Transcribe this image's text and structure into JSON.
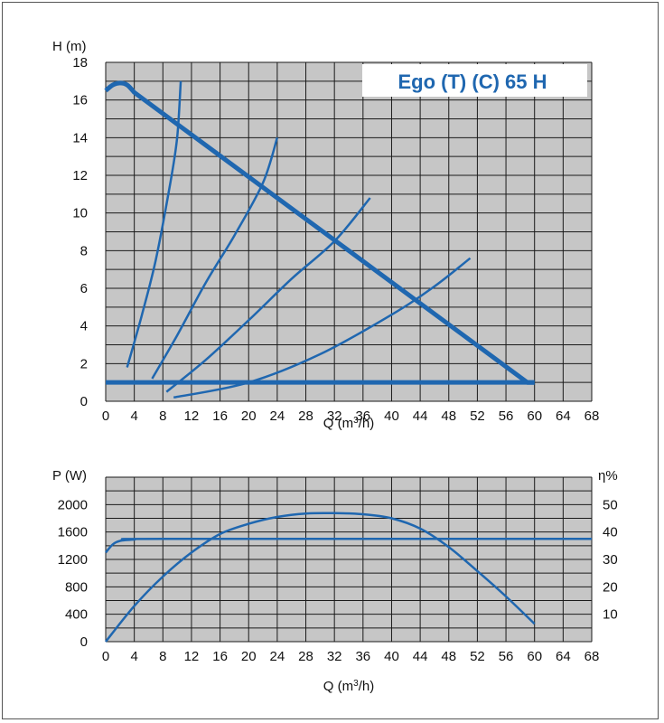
{
  "colors": {
    "curve": "#1f67b0",
    "grid": "#1a1a1a",
    "panel": "#c6c6c6",
    "frame": "#555555"
  },
  "chart_data": [
    {
      "type": "line",
      "title": "Ego (T) (C) 65 H",
      "ylabel": "H (m)",
      "xlabel_main": "Q (m",
      "xlabel_sup": "3",
      "xlabel_tail": "/h)",
      "xlim": [
        0,
        68
      ],
      "ylim": [
        0,
        18
      ],
      "xticks": [
        0,
        4,
        8,
        12,
        16,
        20,
        24,
        28,
        32,
        36,
        40,
        44,
        48,
        52,
        56,
        60,
        64,
        68
      ],
      "yticks": [
        0,
        2,
        4,
        6,
        8,
        10,
        12,
        14,
        16,
        18
      ],
      "grid": true,
      "series": [
        {
          "role": "max-curve",
          "width": 5,
          "points": [
            [
              0,
              16.5
            ],
            [
              1,
              16.8
            ],
            [
              2,
              16.9
            ],
            [
              3,
              16.8
            ],
            [
              4,
              16.4
            ],
            [
              59,
              1
            ],
            [
              60,
              1
            ]
          ]
        },
        {
          "role": "min-curve",
          "width": 5,
          "points": [
            [
              0,
              1
            ],
            [
              60,
              1
            ]
          ]
        },
        {
          "role": "system-curve",
          "width": 2.5,
          "points": [
            [
              3,
              1.8
            ],
            [
              5,
              4.5
            ],
            [
              7,
              7.5
            ],
            [
              9,
              11.5
            ],
            [
              10,
              14
            ],
            [
              10.5,
              17
            ]
          ]
        },
        {
          "role": "system-curve",
          "width": 2.5,
          "points": [
            [
              6.5,
              1.2
            ],
            [
              10,
              3.5
            ],
            [
              14,
              6.3
            ],
            [
              18,
              8.8
            ],
            [
              22,
              11.6
            ],
            [
              24,
              14
            ]
          ]
        },
        {
          "role": "system-curve",
          "width": 2.5,
          "points": [
            [
              8.5,
              0.5
            ],
            [
              14,
              2.2
            ],
            [
              20,
              4.3
            ],
            [
              26,
              6.5
            ],
            [
              32,
              8.5
            ],
            [
              37,
              10.8
            ]
          ]
        },
        {
          "role": "system-curve",
          "width": 2.5,
          "points": [
            [
              9.5,
              0.2
            ],
            [
              20,
              1
            ],
            [
              30,
              2.5
            ],
            [
              40,
              4.6
            ],
            [
              46,
              6.1
            ],
            [
              51,
              7.6
            ]
          ]
        }
      ]
    },
    {
      "type": "line",
      "ylabel": "P (W)",
      "y2label": "η%",
      "xlabel_main": "Q (m",
      "xlabel_sup": "3",
      "xlabel_tail": "/h)",
      "xlim": [
        0,
        68
      ],
      "ylim": [
        0,
        2400
      ],
      "y2lim": [
        0,
        60
      ],
      "xticks": [
        0,
        4,
        8,
        12,
        16,
        20,
        24,
        28,
        32,
        36,
        40,
        44,
        48,
        52,
        56,
        60,
        64,
        68
      ],
      "yticks": [
        0,
        400,
        800,
        1200,
        1600,
        2000
      ],
      "y2ticks": [
        10,
        20,
        30,
        40,
        50
      ],
      "grid": true,
      "series": [
        {
          "role": "power",
          "axis": "left",
          "width": 2.5,
          "points": [
            [
              0,
              1300
            ],
            [
              1,
              1420
            ],
            [
              2,
              1470
            ],
            [
              4,
              1490
            ],
            [
              8,
              1500
            ],
            [
              68,
              1500
            ]
          ]
        },
        {
          "role": "efficiency",
          "axis": "left",
          "width": 2.5,
          "points": [
            [
              0,
              0
            ],
            [
              4,
              520
            ],
            [
              8,
              950
            ],
            [
              12,
              1300
            ],
            [
              16,
              1570
            ],
            [
              20,
              1720
            ],
            [
              24,
              1820
            ],
            [
              28,
              1870
            ],
            [
              32,
              1875
            ],
            [
              36,
              1860
            ],
            [
              40,
              1800
            ],
            [
              44,
              1650
            ],
            [
              48,
              1380
            ],
            [
              52,
              1030
            ],
            [
              56,
              660
            ],
            [
              60,
              260
            ]
          ]
        }
      ]
    }
  ]
}
